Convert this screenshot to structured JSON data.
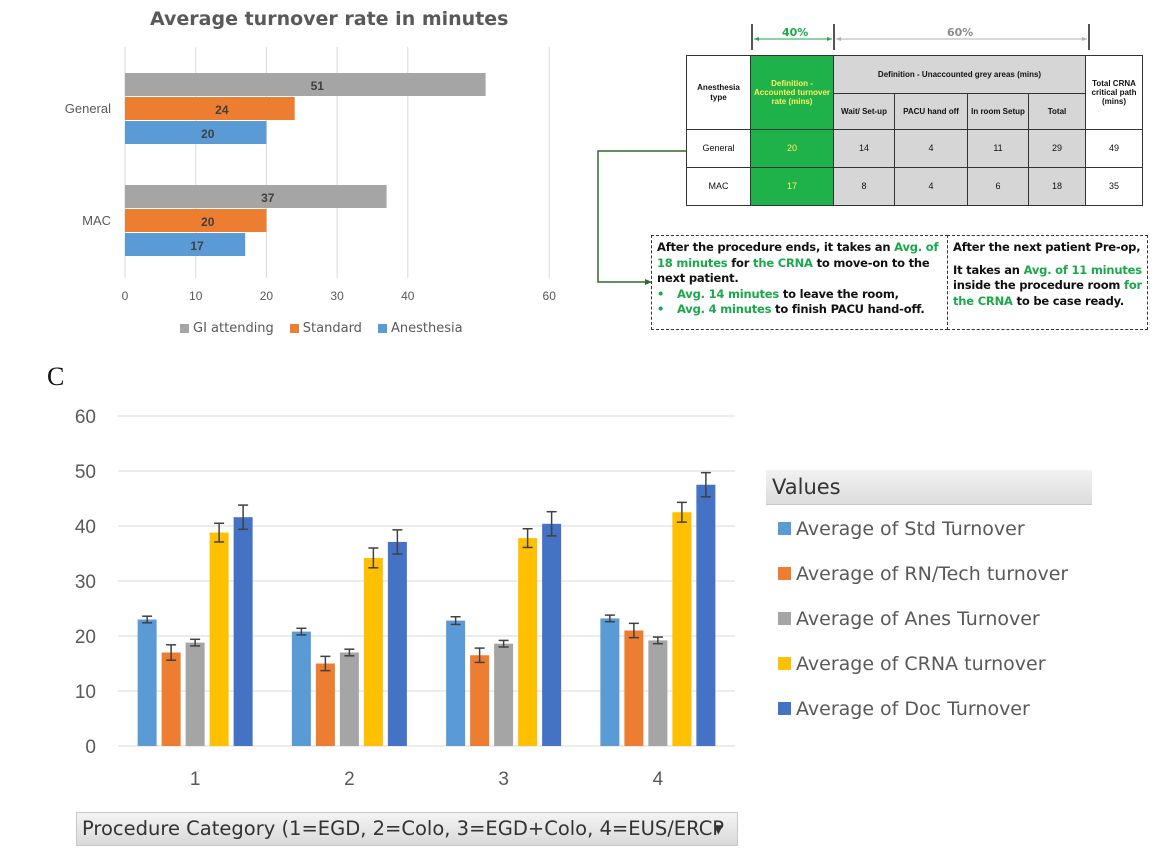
{
  "top_chart": {
    "title": "Average turnover rate in minutes"
  },
  "def_table": {
    "pct_accounted": "40%",
    "pct_unaccounted": "60%",
    "header": {
      "anesthesia_type": "Anesthesia type",
      "accounted": "Definition - Accounted turnover rate (mins)",
      "grey_areas": "Definition - Unaccounted grey areas (mins)",
      "total_crna": "Total CRNA critical path (mins)",
      "sub": [
        "Wait/ Set-up",
        "PACU hand off",
        "In room Setup",
        "Total"
      ]
    },
    "rows": [
      {
        "type": "General",
        "accounted": "20",
        "wait": "14",
        "pacu": "4",
        "inroom": "11",
        "total": "29",
        "crna": "49"
      },
      {
        "type": "MAC",
        "accounted": "17",
        "wait": "8",
        "pacu": "4",
        "inroom": "6",
        "total": "18",
        "crna": "35"
      }
    ]
  },
  "callout_left": {
    "l1a": "After the procedure ends, it takes an ",
    "l1b": "Avg. of",
    "l2a": "18 minutes",
    "l2b": " for ",
    "l2c": "the CRNA",
    "l2d": " to move-on to the",
    "l3": "next patient.",
    "bullet": "•",
    "b1a": "Avg. 14 minutes",
    "b1b": " to leave the room,",
    "b2a": "Avg. 4 minutes",
    "b2b": " to finish PACU hand-off."
  },
  "callout_right": {
    "l1": "After the next patient Pre-op,",
    "l2a": "It takes an ",
    "l2b": "Avg. of 11 minutes",
    "l3a": "inside the procedure room ",
    "l3b": "for",
    "l4a": "the CRNA",
    "l4b": " to be case ready."
  },
  "panel_label": "C",
  "bottom_legend": {
    "header": "Values"
  },
  "filter": {
    "label": "Procedure Category (1=EGD, 2=Colo, 3=EGD+Colo, 4=EUS/ERCP",
    "arrow": "▼"
  },
  "chart_data": [
    {
      "type": "bar",
      "orientation": "horizontal",
      "title": "Average turnover rate in minutes",
      "categories": [
        "General",
        "MAC"
      ],
      "series": [
        {
          "name": "GI attending",
          "values": [
            51,
            37
          ],
          "color": "#a5a5a5"
        },
        {
          "name": "Standard",
          "values": [
            24,
            20
          ],
          "color": "#ed7d31"
        },
        {
          "name": "Anesthesia",
          "values": [
            20,
            17
          ],
          "color": "#5b9bd5"
        }
      ],
      "xlim": [
        0,
        60
      ],
      "xticks": [
        "0",
        "10",
        "20",
        "30",
        "40",
        "60"
      ],
      "grid": true,
      "legend": "bottom"
    },
    {
      "type": "bar",
      "categories": [
        "1",
        "2",
        "3",
        "4"
      ],
      "series": [
        {
          "name": "Average of Std Turnover",
          "values": [
            23,
            20.8,
            22.8,
            23.2
          ],
          "errors": [
            0.6,
            0.6,
            0.7,
            0.6
          ],
          "color": "#5b9bd5"
        },
        {
          "name": "Average of RN/Tech turnover",
          "values": [
            17,
            15,
            16.5,
            21
          ],
          "errors": [
            1.4,
            1.3,
            1.3,
            1.3
          ],
          "color": "#ed7d31"
        },
        {
          "name": "Average of Anes Turnover",
          "values": [
            18.8,
            17,
            18.6,
            19.2
          ],
          "errors": [
            0.6,
            0.6,
            0.6,
            0.6
          ],
          "color": "#a5a5a5"
        },
        {
          "name": "Average of CRNA turnover",
          "values": [
            38.8,
            34.2,
            37.8,
            42.5
          ],
          "errors": [
            1.7,
            1.8,
            1.7,
            1.8
          ],
          "color": "#ffc000"
        },
        {
          "name": "Average of Doc Turnover",
          "values": [
            41.6,
            37.1,
            40.4,
            47.5
          ],
          "errors": [
            2.2,
            2.2,
            2.2,
            2.2
          ],
          "color": "#4472c4"
        }
      ],
      "ylim": [
        0,
        60
      ],
      "yticks": [
        "0",
        "10",
        "20",
        "30",
        "40",
        "50",
        "60"
      ],
      "grid": true,
      "legend": "right"
    }
  ]
}
